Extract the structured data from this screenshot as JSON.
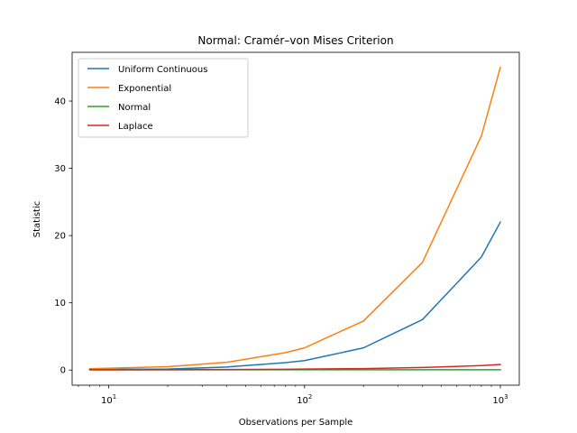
{
  "chart_data": {
    "type": "line",
    "title": "Normal: Cramér–von Mises Criterion",
    "xlabel": "Observations per Sample",
    "ylabel": "Statistic",
    "xscale": "log",
    "xlim": [
      6.5,
      1250
    ],
    "ylim": [
      -2.25,
      47.25
    ],
    "x": [
      8,
      20,
      40,
      80,
      100,
      200,
      400,
      800,
      1000
    ],
    "yticks": [
      0,
      10,
      20,
      30,
      40
    ],
    "ytick_labels": [
      "0",
      "10",
      "20",
      "30",
      "40"
    ],
    "xticks": [
      10,
      100,
      1000
    ],
    "xtick_labels": [
      "10",
      "10",
      "10"
    ],
    "xtick_exponents": [
      "1",
      "2",
      "3"
    ],
    "legend_position": "upper-left",
    "grid": false,
    "series": [
      {
        "name": "Uniform Continuous",
        "color": "#1f77b4",
        "values": [
          0.1,
          0.15,
          0.45,
          1.1,
          1.4,
          3.3,
          7.5,
          16.8,
          22.0
        ]
      },
      {
        "name": "Exponential",
        "color": "#ff7f0e",
        "values": [
          0.2,
          0.5,
          1.15,
          2.6,
          3.3,
          7.3,
          16.0,
          34.8,
          45.0
        ]
      },
      {
        "name": "Normal",
        "color": "#2ca02c",
        "values": [
          0.03,
          0.03,
          0.04,
          0.04,
          0.04,
          0.04,
          0.04,
          0.04,
          0.04
        ]
      },
      {
        "name": "Laplace",
        "color": "#d62728",
        "values": [
          0.05,
          0.06,
          0.08,
          0.12,
          0.14,
          0.22,
          0.38,
          0.66,
          0.83
        ]
      }
    ]
  }
}
